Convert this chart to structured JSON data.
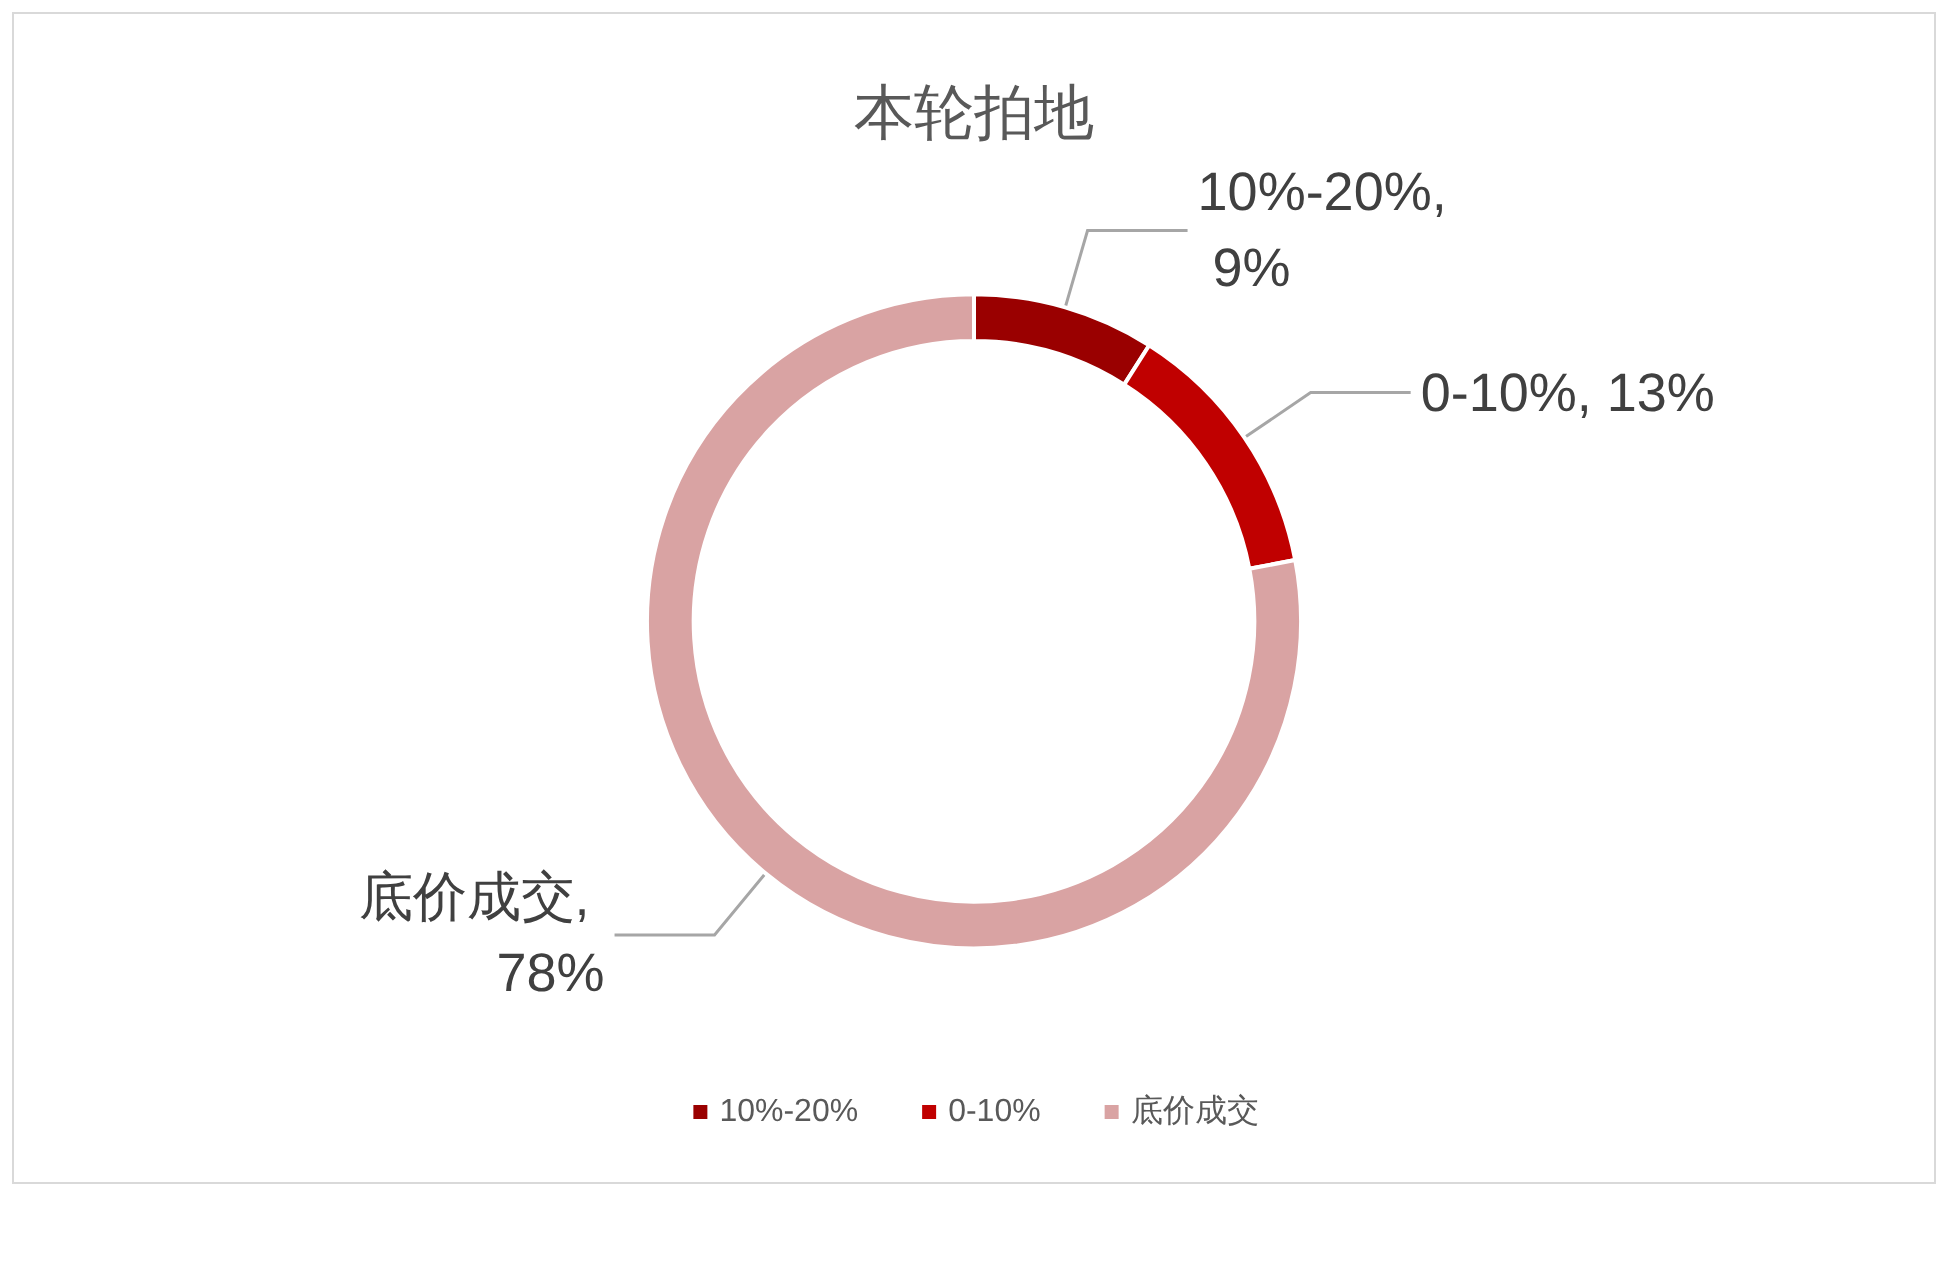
{
  "chart_data": {
    "type": "donut",
    "title": "本轮拍地",
    "categories": [
      "10%-20%",
      "0-10%",
      "底价成交"
    ],
    "values": [
      9,
      13,
      78
    ],
    "value_labels": [
      "10%-20%, 9%",
      "0-10%, 13%",
      "底价成交, 78%"
    ],
    "colors": [
      "#9a0000",
      "#c00000",
      "#d9a3a3"
    ],
    "legend": "bottom"
  }
}
